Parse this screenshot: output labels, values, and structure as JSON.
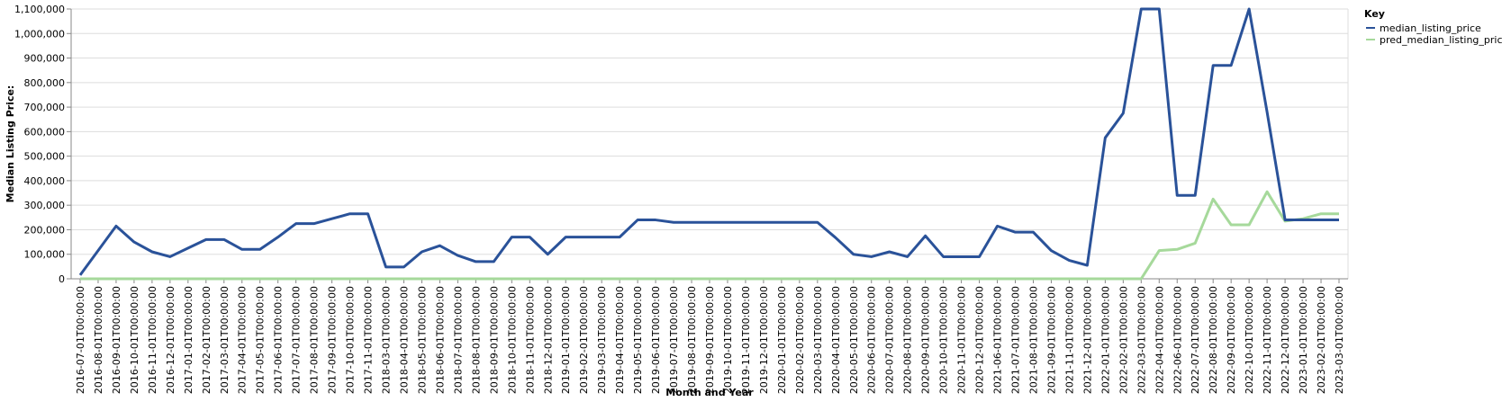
{
  "chart_data": {
    "type": "line",
    "xlabel": "Month and Year",
    "ylabel": "Median Listing Price:",
    "ylim": [
      0,
      1100000
    ],
    "y_ticks": [
      0,
      100000,
      200000,
      300000,
      400000,
      500000,
      600000,
      700000,
      800000,
      900000,
      1000000,
      1100000
    ],
    "y_tick_labels": [
      "0",
      "100,000",
      "200,000",
      "300,000",
      "400,000",
      "500,000",
      "600,000",
      "700,000",
      "800,000",
      "900,000",
      "1,000,000",
      "1,100,000"
    ],
    "grid": true,
    "legend": {
      "title": "Key",
      "placement": "top-right"
    },
    "categories": [
      "2016-07-01T00:00:00",
      "2016-08-01T00:00:00",
      "2016-09-01T00:00:00",
      "2016-10-01T00:00:00",
      "2016-11-01T00:00:00",
      "2016-12-01T00:00:00",
      "2017-01-01T00:00:00",
      "2017-02-01T00:00:00",
      "2017-03-01T00:00:00",
      "2017-04-01T00:00:00",
      "2017-05-01T00:00:00",
      "2017-06-01T00:00:00",
      "2017-07-01T00:00:00",
      "2017-08-01T00:00:00",
      "2017-09-01T00:00:00",
      "2017-10-01T00:00:00",
      "2017-11-01T00:00:00",
      "2018-03-01T00:00:00",
      "2018-04-01T00:00:00",
      "2018-05-01T00:00:00",
      "2018-06-01T00:00:00",
      "2018-07-01T00:00:00",
      "2018-08-01T00:00:00",
      "2018-09-01T00:00:00",
      "2018-10-01T00:00:00",
      "2018-11-01T00:00:00",
      "2018-12-01T00:00:00",
      "2019-01-01T00:00:00",
      "2019-02-01T00:00:00",
      "2019-03-01T00:00:00",
      "2019-04-01T00:00:00",
      "2019-05-01T00:00:00",
      "2019-06-01T00:00:00",
      "2019-07-01T00:00:00",
      "2019-08-01T00:00:00",
      "2019-09-01T00:00:00",
      "2019-10-01T00:00:00",
      "2019-11-01T00:00:00",
      "2019-12-01T00:00:00",
      "2020-01-01T00:00:00",
      "2020-02-01T00:00:00",
      "2020-03-01T00:00:00",
      "2020-04-01T00:00:00",
      "2020-05-01T00:00:00",
      "2020-06-01T00:00:00",
      "2020-07-01T00:00:00",
      "2020-08-01T00:00:00",
      "2020-09-01T00:00:00",
      "2020-10-01T00:00:00",
      "2020-11-01T00:00:00",
      "2020-12-01T00:00:00",
      "2021-06-01T00:00:00",
      "2021-07-01T00:00:00",
      "2021-08-01T00:00:00",
      "2021-09-01T00:00:00",
      "2021-11-01T00:00:00",
      "2021-12-01T00:00:00",
      "2022-01-01T00:00:00",
      "2022-02-01T00:00:00",
      "2022-03-01T00:00:00",
      "2022-04-01T00:00:00",
      "2022-06-01T00:00:00",
      "2022-07-01T00:00:00",
      "2022-08-01T00:00:00",
      "2022-09-01T00:00:00",
      "2022-10-01T00:00:00",
      "2022-11-01T00:00:00",
      "2022-12-01T00:00:00",
      "2023-01-01T00:00:00",
      "2023-02-01T00:00:00",
      "2023-03-01T00:00:00"
    ],
    "series": [
      {
        "name": "median_listing_price",
        "color": "#2a5299",
        "values": [
          15000,
          115000,
          215000,
          150000,
          110000,
          90000,
          125000,
          160000,
          160000,
          120000,
          120000,
          170000,
          225000,
          225000,
          245000,
          265000,
          265000,
          48000,
          48000,
          110000,
          135000,
          95000,
          70000,
          70000,
          170000,
          170000,
          100000,
          170000,
          170000,
          170000,
          170000,
          240000,
          240000,
          230000,
          230000,
          230000,
          230000,
          230000,
          230000,
          230000,
          230000,
          230000,
          168000,
          100000,
          90000,
          110000,
          90000,
          175000,
          90000,
          90000,
          90000,
          215000,
          190000,
          190000,
          115000,
          75000,
          55000,
          575000,
          675000,
          1100000,
          1100000,
          340000,
          340000,
          870000,
          870000,
          1100000,
          680000,
          240000,
          240000,
          240000,
          240000
        ]
      },
      {
        "name": "pred_median_listing_price",
        "color": "#a6d99b",
        "values": [
          0,
          0,
          0,
          0,
          0,
          0,
          0,
          0,
          0,
          0,
          0,
          0,
          0,
          0,
          0,
          0,
          0,
          0,
          0,
          0,
          0,
          0,
          0,
          0,
          0,
          0,
          0,
          0,
          0,
          0,
          0,
          0,
          0,
          0,
          0,
          0,
          0,
          0,
          0,
          0,
          0,
          0,
          0,
          0,
          0,
          0,
          0,
          0,
          0,
          0,
          0,
          0,
          0,
          0,
          0,
          0,
          0,
          0,
          0,
          0,
          115000,
          120000,
          145000,
          325000,
          220000,
          220000,
          355000,
          235000,
          245000,
          265000,
          265000
        ]
      }
    ]
  }
}
